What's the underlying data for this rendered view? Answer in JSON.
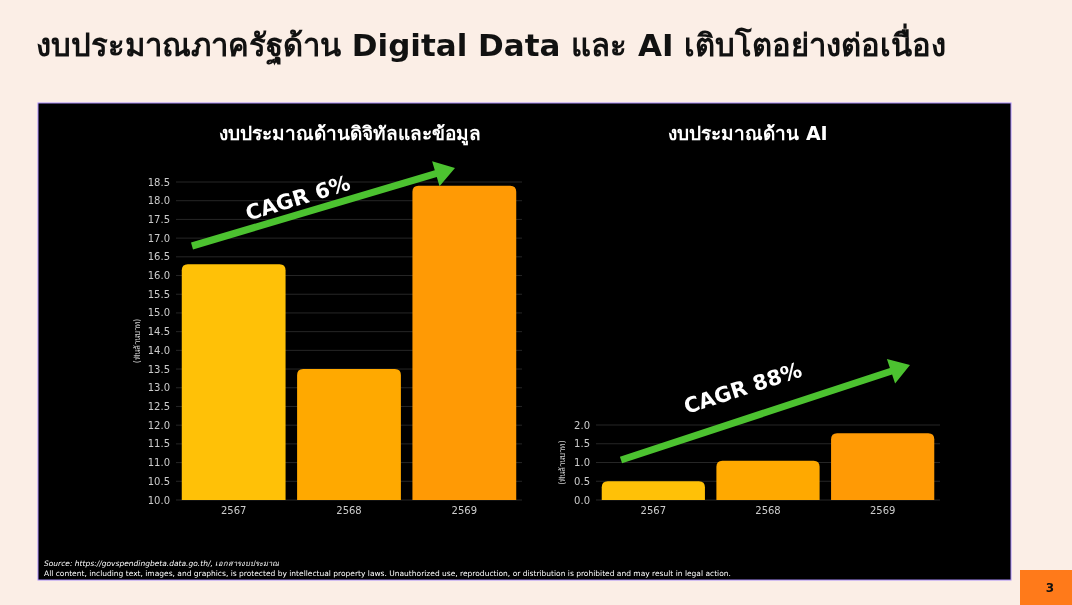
{
  "chart_data": [
    {
      "type": "bar",
      "title": "งบประมาณภาครัฐด้าน Digital Data และ AI เติบโตอย่างต่อเนื่อง",
      "subtitle": "งบประมาณด้านดิจิทัลและข้อมูล",
      "ylabel": "(พันล้านบาท)",
      "categories": [
        "2567",
        "2568",
        "2569"
      ],
      "values": [
        16.3,
        13.5,
        18.4
      ],
      "colors": [
        "#ffc107",
        "#ffa900",
        "#ff9a05"
      ],
      "ylim": [
        10,
        18.5
      ],
      "yticks": [
        {
          "value": 10,
          "label": "10.0"
        },
        {
          "value": 10.5,
          "label": "10.5"
        },
        {
          "value": 11,
          "label": "11.0"
        },
        {
          "value": 11.5,
          "label": "11.5"
        },
        {
          "value": 12,
          "label": "12.0"
        },
        {
          "value": 12.5,
          "label": "12.5"
        },
        {
          "value": 13,
          "label": "13.0"
        },
        {
          "value": 13.5,
          "label": "13.5"
        },
        {
          "value": 14,
          "label": "14.0"
        },
        {
          "value": 14.5,
          "label": "14.5"
        },
        {
          "value": 15,
          "label": "15.0"
        },
        {
          "value": 15.5,
          "label": "15.5"
        },
        {
          "value": 16,
          "label": "16.0"
        },
        {
          "value": 16.5,
          "label": "16.5"
        },
        {
          "value": 17,
          "label": "17.0"
        },
        {
          "value": 17.5,
          "label": "17.5"
        },
        {
          "value": 18,
          "label": "18.0"
        },
        {
          "value": 18.5,
          "label": "18.5"
        }
      ],
      "grid": "y",
      "annotations": [
        "CAGR 6%",
        "Source: https://govspendingbeta.data.go.th/, เอกสารงบประมาณ",
        "All content, including text, images, and graphics, is protected by intellectual property laws. Unauthorized use, reproduction, or distribution is prohibited and may result in legal action.",
        "3"
      ]
    },
    {
      "type": "bar",
      "title": "งบประมาณด้าน AI",
      "ylabel": "(พันล้านบาท)",
      "categories": [
        "2567",
        "2568",
        "2569"
      ],
      "values": [
        0.5,
        1.05,
        1.78
      ],
      "colors": [
        "#ffc107",
        "#ffa900",
        "#ff9a05"
      ],
      "ylim": [
        0,
        2
      ],
      "yticks": [
        {
          "value": 0,
          "label": "0.0"
        },
        {
          "value": 0.5,
          "label": "0.5"
        },
        {
          "value": 1,
          "label": "1.0"
        },
        {
          "value": 1.5,
          "label": "1.5"
        },
        {
          "value": 2,
          "label": "2.0"
        }
      ],
      "grid": "y",
      "annotations": [
        "CAGR 88%"
      ]
    }
  ]
}
